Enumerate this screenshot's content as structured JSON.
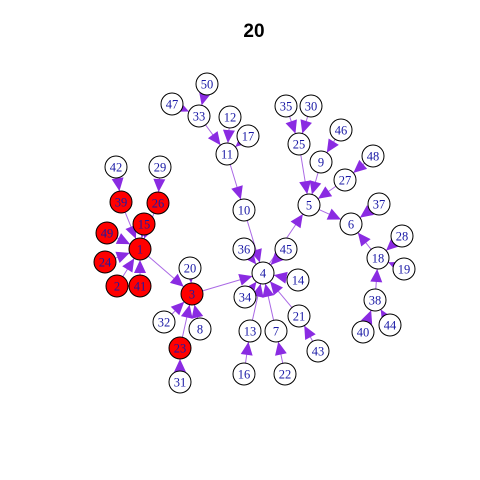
{
  "title": "20",
  "colors": {
    "edge": "#9b4fe0",
    "arrow": "#8a2be2",
    "node_default_fill": "#ffffff",
    "node_highlight_fill": "#ff0000",
    "node_stroke": "#000000",
    "label_default": "#1a1aa6",
    "label_highlight": "#1a1aa6"
  },
  "nodes": [
    {
      "id": "1",
      "highlight": true
    },
    {
      "id": "2",
      "highlight": true
    },
    {
      "id": "3",
      "highlight": true
    },
    {
      "id": "4",
      "highlight": false
    },
    {
      "id": "5",
      "highlight": false
    },
    {
      "id": "6",
      "highlight": false
    },
    {
      "id": "7",
      "highlight": false
    },
    {
      "id": "8",
      "highlight": false
    },
    {
      "id": "9",
      "highlight": false
    },
    {
      "id": "10",
      "highlight": false
    },
    {
      "id": "11",
      "highlight": false
    },
    {
      "id": "12",
      "highlight": false
    },
    {
      "id": "13",
      "highlight": false
    },
    {
      "id": "14",
      "highlight": false
    },
    {
      "id": "15",
      "highlight": true
    },
    {
      "id": "16",
      "highlight": false
    },
    {
      "id": "17",
      "highlight": false
    },
    {
      "id": "18",
      "highlight": false
    },
    {
      "id": "19",
      "highlight": false
    },
    {
      "id": "20",
      "highlight": false
    },
    {
      "id": "21",
      "highlight": false
    },
    {
      "id": "22",
      "highlight": false
    },
    {
      "id": "23",
      "highlight": true
    },
    {
      "id": "24",
      "highlight": true
    },
    {
      "id": "25",
      "highlight": false
    },
    {
      "id": "26",
      "highlight": true
    },
    {
      "id": "27",
      "highlight": false
    },
    {
      "id": "28",
      "highlight": false
    },
    {
      "id": "29",
      "highlight": false
    },
    {
      "id": "30",
      "highlight": false
    },
    {
      "id": "31",
      "highlight": false
    },
    {
      "id": "32",
      "highlight": false
    },
    {
      "id": "33",
      "highlight": false
    },
    {
      "id": "34",
      "highlight": false
    },
    {
      "id": "35",
      "highlight": false
    },
    {
      "id": "36",
      "highlight": false
    },
    {
      "id": "37",
      "highlight": false
    },
    {
      "id": "38",
      "highlight": false
    },
    {
      "id": "39",
      "highlight": true
    },
    {
      "id": "40",
      "highlight": false
    },
    {
      "id": "41",
      "highlight": true
    },
    {
      "id": "42",
      "highlight": false
    },
    {
      "id": "43",
      "highlight": false
    },
    {
      "id": "44",
      "highlight": false
    },
    {
      "id": "45",
      "highlight": false
    },
    {
      "id": "46",
      "highlight": false
    },
    {
      "id": "47",
      "highlight": false
    },
    {
      "id": "48",
      "highlight": false
    },
    {
      "id": "49",
      "highlight": true
    },
    {
      "id": "50",
      "highlight": false
    }
  ],
  "edges": [
    [
      "1",
      "3"
    ],
    [
      "3",
      "4"
    ],
    [
      "4",
      "5"
    ],
    [
      "5",
      "6"
    ],
    [
      "2",
      "1"
    ],
    [
      "15",
      "1"
    ],
    [
      "24",
      "1"
    ],
    [
      "41",
      "1"
    ],
    [
      "49",
      "1"
    ],
    [
      "39",
      "1"
    ],
    [
      "26",
      "1"
    ],
    [
      "42",
      "39"
    ],
    [
      "29",
      "26"
    ],
    [
      "20",
      "3"
    ],
    [
      "32",
      "3"
    ],
    [
      "8",
      "3"
    ],
    [
      "23",
      "3"
    ],
    [
      "31",
      "23"
    ],
    [
      "36",
      "4"
    ],
    [
      "45",
      "4"
    ],
    [
      "14",
      "4"
    ],
    [
      "34",
      "4"
    ],
    [
      "13",
      "4"
    ],
    [
      "7",
      "4"
    ],
    [
      "21",
      "4"
    ],
    [
      "10",
      "4"
    ],
    [
      "16",
      "13"
    ],
    [
      "22",
      "7"
    ],
    [
      "43",
      "21"
    ],
    [
      "11",
      "10"
    ],
    [
      "12",
      "11"
    ],
    [
      "17",
      "11"
    ],
    [
      "33",
      "11"
    ],
    [
      "47",
      "33"
    ],
    [
      "50",
      "33"
    ],
    [
      "9",
      "5"
    ],
    [
      "25",
      "5"
    ],
    [
      "27",
      "5"
    ],
    [
      "35",
      "25"
    ],
    [
      "30",
      "25"
    ],
    [
      "46",
      "9"
    ],
    [
      "48",
      "27"
    ],
    [
      "37",
      "6"
    ],
    [
      "18",
      "6"
    ],
    [
      "28",
      "18"
    ],
    [
      "19",
      "18"
    ],
    [
      "38",
      "18"
    ],
    [
      "40",
      "38"
    ],
    [
      "44",
      "38"
    ]
  ]
}
